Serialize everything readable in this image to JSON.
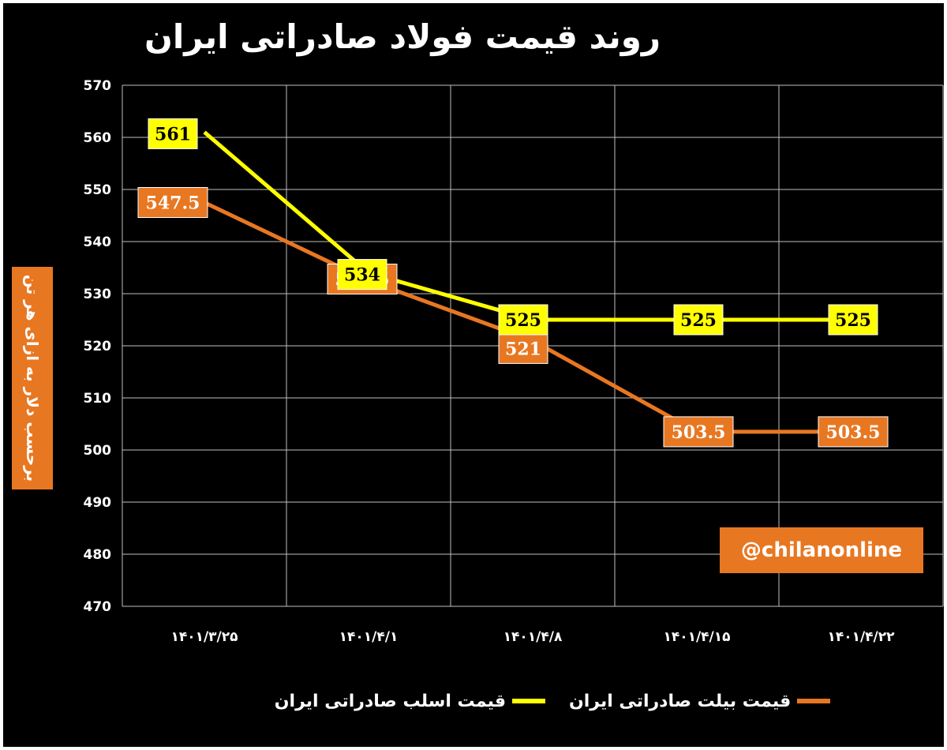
{
  "chart_data": {
    "type": "line",
    "title": "روند قیمت فولاد صادراتی ایران",
    "ylabel": "برحسب دلار به ازای هر تن",
    "categories": [
      "۱۴۰۱/۳/۲۵",
      "۱۴۰۱/۴/۱",
      "۱۴۰۱/۴/۸",
      "۱۴۰۱/۴/۱۵",
      "۱۴۰۱/۴/۲۲"
    ],
    "ylim": [
      470,
      570
    ],
    "yticks": [
      570,
      560,
      550,
      540,
      530,
      520,
      510,
      500,
      490,
      480,
      470
    ],
    "grid": true,
    "legend_position": "bottom",
    "series": [
      {
        "name": "قیمت اسلب صادراتی ایران",
        "values": [
          561,
          534,
          525,
          525,
          525
        ],
        "labels": [
          "561",
          "534",
          "525",
          "525",
          "525"
        ],
        "color": "#ffff00"
      },
      {
        "name": "قیمت بیلت صادراتی ایران",
        "values": [
          547.5,
          532.5,
          521,
          503.5,
          503.5
        ],
        "labels": [
          "547.5",
          "532.5",
          "521",
          "503.5",
          "503.5"
        ],
        "color": "#e87722"
      }
    ]
  },
  "watermark": "@chilanonline"
}
